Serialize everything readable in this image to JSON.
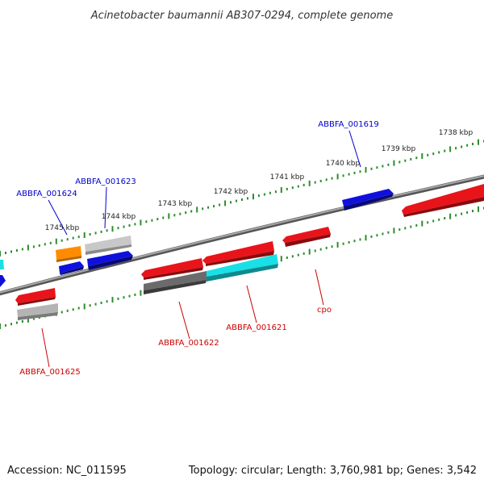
{
  "title": "Acinetobacter baumannii AB307-0294, complete genome",
  "footer": {
    "accession": "Accession: NC_011595",
    "summary": "Topology: circular; Length: 3,760,981 bp; Genes: 3,542"
  },
  "colors": {
    "backbone": "#7a7a7a",
    "tick": "#2e8b2e",
    "label_forward": "#0000cc",
    "label_reverse": "#cc0000",
    "gene_red": "#e8141a",
    "gene_blue": "#1010dd",
    "gene_cyan": "#19e0e6",
    "gene_gray": "#b4b4b4",
    "gene_darkgray": "#6b6b6b",
    "gene_orange": "#ff8c00"
  },
  "tick_labels": [
    "1738 kbp",
    "1739 kbp",
    "1740 kbp",
    "1741 kbp",
    "1742 kbp",
    "1743 kbp",
    "1744 kbp",
    "1745 kbp"
  ],
  "gene_labels": {
    "ABBFA_001619": "ABBFA_001619",
    "ABBFA_001623": "ABBFA_001623",
    "ABBFA_001624": "ABBFA_001624",
    "ABBFA_001622": "ABBFA_001622",
    "ABBFA_001621": "ABBFA_001621",
    "cpo": "cpo",
    "ABBFA_001625": "ABBFA_001625"
  }
}
